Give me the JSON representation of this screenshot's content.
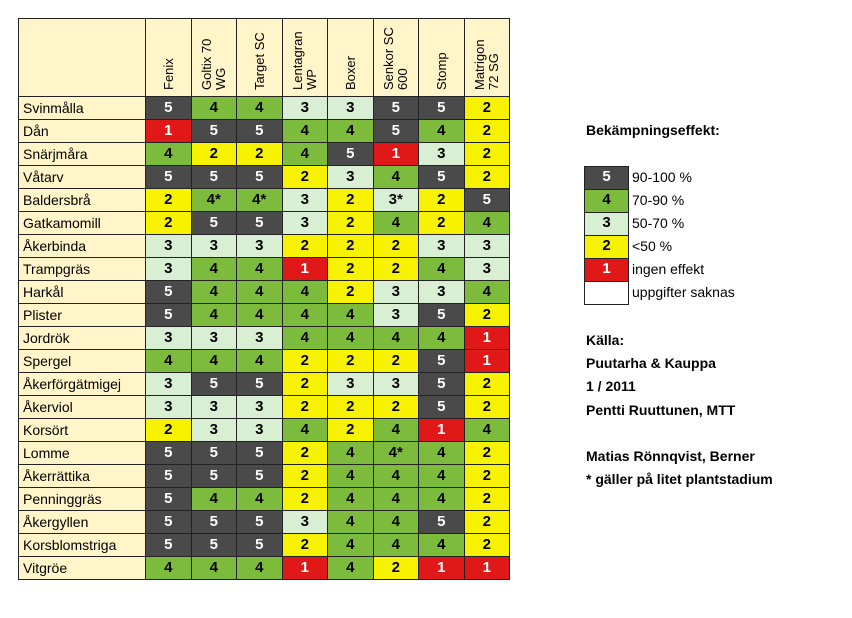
{
  "colors": {
    "5": "#4a4a4a",
    "4": "#7dbb3c",
    "3": "#d9efd4",
    "2": "#f7f200",
    "1": "#e01818",
    "header_bg": "#fff5c8"
  },
  "chart_data": {
    "type": "table",
    "columns": [
      "Fenix",
      "Goltix 70\nWG",
      "Target SC",
      "Lentagran\nWP",
      "Boxer",
      "Senkor SC\n600",
      "Stomp",
      "Matrigon\n72 SG"
    ],
    "rows": [
      {
        "weed": "Svinmålla",
        "values": [
          "5",
          "4",
          "4",
          "3",
          "3",
          "5",
          "5",
          "2"
        ]
      },
      {
        "weed": "Dån",
        "values": [
          "1",
          "5",
          "5",
          "4",
          "4",
          "5",
          "4",
          "2"
        ]
      },
      {
        "weed": "Snärjmåra",
        "values": [
          "4",
          "2",
          "2",
          "4",
          "5",
          "1",
          "3",
          "2"
        ]
      },
      {
        "weed": "Våtarv",
        "values": [
          "5",
          "5",
          "5",
          "2",
          "3",
          "4",
          "5",
          "2"
        ]
      },
      {
        "weed": "Baldersbrå",
        "values": [
          "2",
          "4*",
          "4*",
          "3",
          "2",
          "3*",
          "2",
          "5"
        ]
      },
      {
        "weed": "Gatkamomill",
        "values": [
          "2",
          "5",
          "5",
          "3",
          "2",
          "4",
          "2",
          "4"
        ]
      },
      {
        "weed": "Åkerbinda",
        "values": [
          "3",
          "3",
          "3",
          "2",
          "2",
          "2",
          "3",
          "3"
        ]
      },
      {
        "weed": "Trampgräs",
        "values": [
          "3",
          "4",
          "4",
          "1",
          "2",
          "2",
          "4",
          "3"
        ]
      },
      {
        "weed": "Harkål",
        "values": [
          "5",
          "4",
          "4",
          "4",
          "2",
          "3",
          "3",
          "4"
        ]
      },
      {
        "weed": "Plister",
        "values": [
          "5",
          "4",
          "4",
          "4",
          "4",
          "3",
          "5",
          "2"
        ]
      },
      {
        "weed": "Jordrök",
        "values": [
          "3",
          "3",
          "3",
          "4",
          "4",
          "4",
          "4",
          "1"
        ]
      },
      {
        "weed": "Spergel",
        "values": [
          "4",
          "4",
          "4",
          "2",
          "2",
          "2",
          "5",
          "1"
        ]
      },
      {
        "weed": "Åkerförgätmigej",
        "values": [
          "3",
          "5",
          "5",
          "2",
          "3",
          "3",
          "5",
          "2"
        ]
      },
      {
        "weed": "Åkerviol",
        "values": [
          "3",
          "3",
          "3",
          "2",
          "2",
          "2",
          "5",
          "2"
        ]
      },
      {
        "weed": "Korsört",
        "values": [
          "2",
          "3",
          "3",
          "4",
          "2",
          "4",
          "1",
          "4"
        ]
      },
      {
        "weed": "Lomme",
        "values": [
          "5",
          "5",
          "5",
          "2",
          "4",
          "4*",
          "4",
          "2"
        ]
      },
      {
        "weed": "Åkerrättika",
        "values": [
          "5",
          "5",
          "5",
          "2",
          "4",
          "4",
          "4",
          "2"
        ]
      },
      {
        "weed": "Penninggräs",
        "values": [
          "5",
          "4",
          "4",
          "2",
          "4",
          "4",
          "4",
          "2"
        ]
      },
      {
        "weed": "Åkergyllen",
        "values": [
          "5",
          "5",
          "5",
          "3",
          "4",
          "4",
          "5",
          "2"
        ]
      },
      {
        "weed": "Korsblomstriga",
        "values": [
          "5",
          "5",
          "5",
          "2",
          "4",
          "4",
          "4",
          "2"
        ]
      },
      {
        "weed": "Vitgröe",
        "values": [
          "4",
          "4",
          "4",
          "1",
          "4",
          "2",
          "1",
          "1"
        ]
      }
    ]
  },
  "legend": {
    "title": "Bekämpningseffekt:",
    "items": [
      {
        "level": "5",
        "label": "90-100 %"
      },
      {
        "level": "4",
        "label": "70-90 %"
      },
      {
        "level": "3",
        "label": "50-70 %"
      },
      {
        "level": "2",
        "label": "<50 %"
      },
      {
        "level": "1",
        "label": "ingen effekt"
      },
      {
        "level": "",
        "label": "uppgifter saknas"
      }
    ]
  },
  "source": {
    "heading": "Källa:",
    "line1": "Puutarha & Kauppa",
    "line2": "1 / 2011",
    "line3": "Pentti Ruuttunen, MTT",
    "line4": "Matias Rönnqvist, Berner",
    "note": "* gäller på litet plantstadium"
  }
}
